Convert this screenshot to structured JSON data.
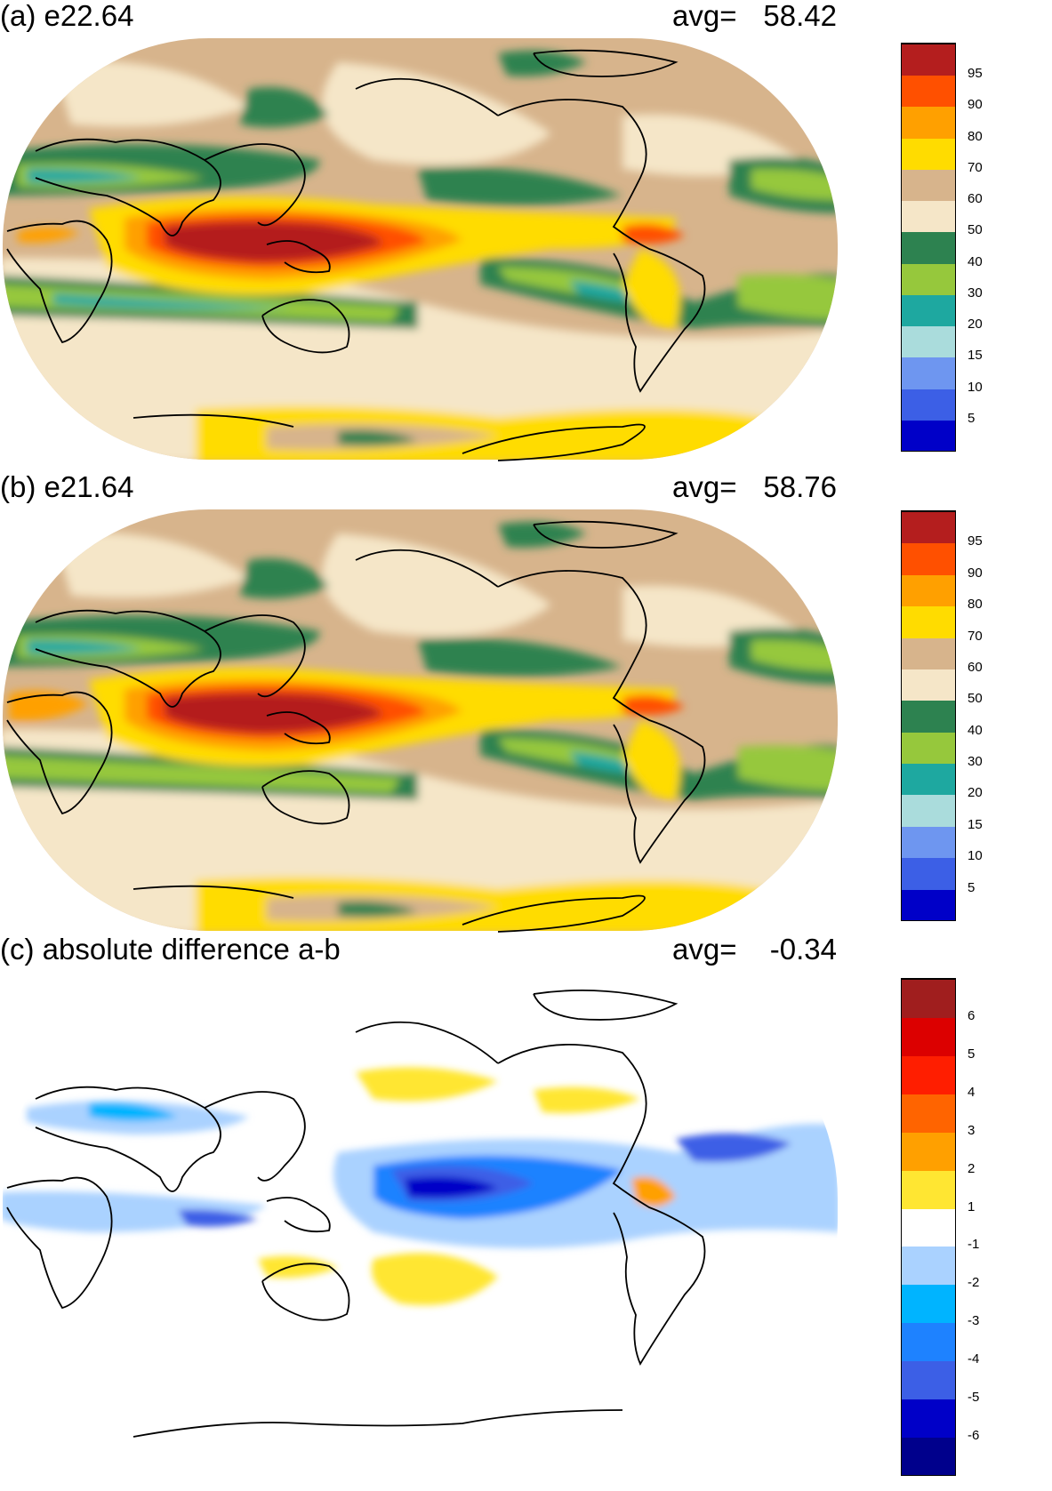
{
  "panels": [
    {
      "id": "a",
      "title": "(a) e22.64",
      "avg_label": "avg=",
      "avg_value": "58.42",
      "colorbar": {
        "colors": [
          "#0000c8",
          "#3c5fe6",
          "#6e96f0",
          "#aadcdc",
          "#1ea8a0",
          "#96c83c",
          "#2d8250",
          "#f5e6c8",
          "#d7b48c",
          "#ffdc00",
          "#ffa000",
          "#ff5000",
          "#b41e1e"
        ],
        "tick_labels": [
          "5",
          "10",
          "15",
          "20",
          "30",
          "40",
          "50",
          "60",
          "70",
          "80",
          "90",
          "95"
        ]
      }
    },
    {
      "id": "b",
      "title": "(b) e21.64",
      "avg_label": "avg=",
      "avg_value": "58.76",
      "colorbar": {
        "colors": [
          "#0000c8",
          "#3c5fe6",
          "#6e96f0",
          "#aadcdc",
          "#1ea8a0",
          "#96c83c",
          "#2d8250",
          "#f5e6c8",
          "#d7b48c",
          "#ffdc00",
          "#ffa000",
          "#ff5000",
          "#b41e1e"
        ],
        "tick_labels": [
          "5",
          "10",
          "15",
          "20",
          "30",
          "40",
          "50",
          "60",
          "70",
          "80",
          "90",
          "95"
        ]
      }
    },
    {
      "id": "c",
      "title": "(c) absolute difference a-b",
      "avg_label": "avg=",
      "avg_value": "-0.34",
      "colorbar": {
        "colors": [
          "#00008c",
          "#0000c8",
          "#3c5fe6",
          "#1e82ff",
          "#00b4ff",
          "#aad2ff",
          "#ffffff",
          "#ffe632",
          "#ffa000",
          "#ff6400",
          "#ff1e00",
          "#dc0000",
          "#a01e1e"
        ],
        "tick_labels": [
          "-6",
          "-5",
          "-4",
          "-3",
          "-2",
          "-1",
          "1",
          "2",
          "3",
          "4",
          "5",
          "6"
        ]
      }
    }
  ]
}
